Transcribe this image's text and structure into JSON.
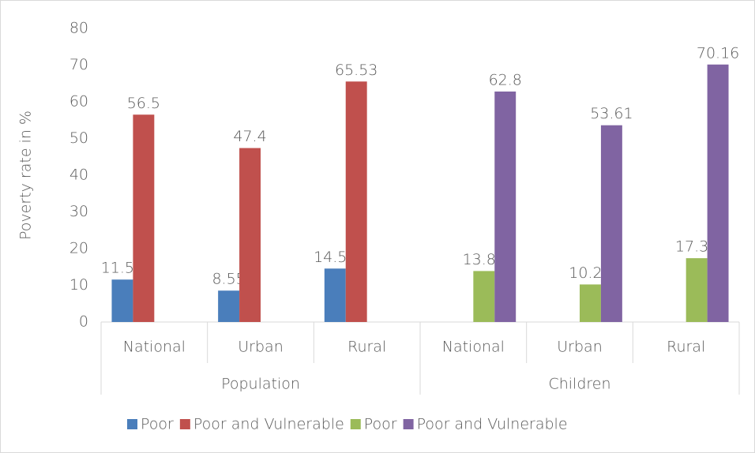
{
  "chart_data": {
    "type": "bar",
    "y_label": "Poverty rate in %",
    "categories": [
      "National",
      "Urban",
      "Rural",
      "National",
      "Urban",
      "Rural"
    ],
    "groups": [
      "Population",
      "Children"
    ],
    "series": [
      {
        "name": "Poor",
        "color": "#4a7ebb",
        "values": [
          11.56,
          8.55,
          14.56,
          null,
          null,
          null
        ]
      },
      {
        "name": "Poor and Vulnerable",
        "color": "#c0504d",
        "values": [
          56.5,
          47.4,
          65.53,
          null,
          null,
          null
        ]
      },
      {
        "name": "Poor",
        "color": "#9bbb59",
        "values": [
          null,
          null,
          null,
          13.89,
          10.23,
          17.39
        ]
      },
      {
        "name": "Poor and Vulnerable",
        "color": "#8064a2",
        "values": [
          null,
          null,
          null,
          62.8,
          53.61,
          70.16
        ]
      }
    ],
    "ylim": [
      0,
      80
    ],
    "yticks": [
      0,
      10,
      20,
      30,
      40,
      50,
      60,
      70,
      80
    ],
    "grid": false,
    "legend": "bottom"
  }
}
